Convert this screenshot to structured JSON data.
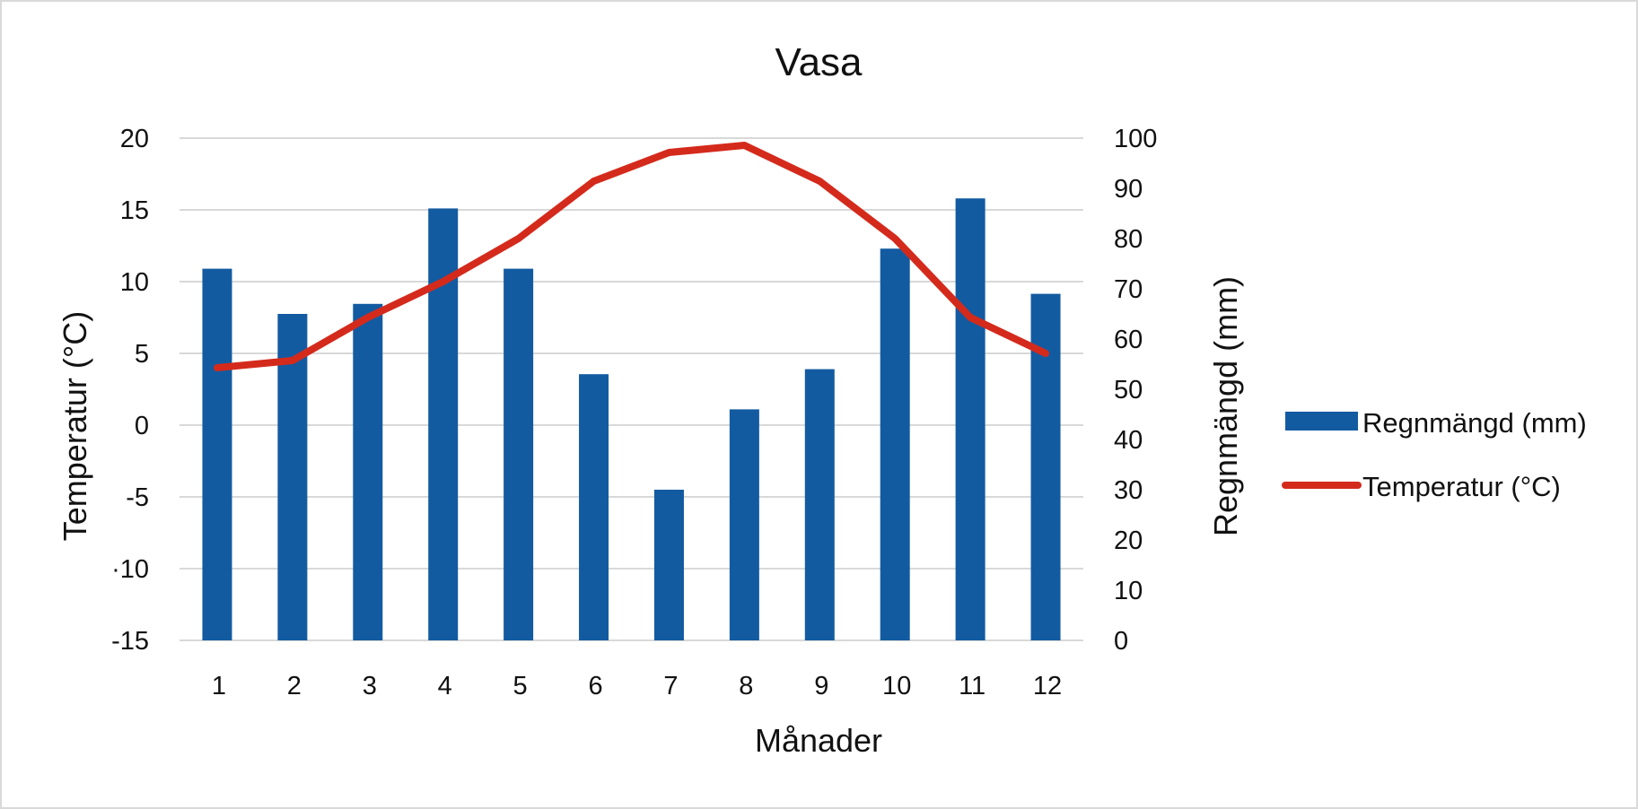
{
  "chart_data": {
    "type": "bar",
    "title": "Vasa",
    "xlabel": "Månader",
    "ylabel_left": "Temperatur (°C)",
    "ylabel_right": "Regnmängd (mm)",
    "categories": [
      "1",
      "2",
      "3",
      "4",
      "5",
      "6",
      "7",
      "8",
      "9",
      "10",
      "11",
      "12"
    ],
    "y_left": {
      "range": [
        -15,
        20
      ],
      "ticks": [
        20,
        15,
        10,
        5,
        0,
        -5,
        -10,
        -15
      ],
      "tick_labels": [
        "20",
        "15",
        "10",
        "5",
        "0",
        "-5",
        "·10",
        "-15"
      ]
    },
    "y_right": {
      "range": [
        0,
        100
      ],
      "ticks": [
        100,
        90,
        80,
        70,
        60,
        50,
        40,
        30,
        20,
        10,
        0
      ],
      "tick_labels": [
        "100",
        "90",
        "80",
        "70",
        "60",
        "50",
        "40",
        "30",
        "20",
        "10",
        "0"
      ]
    },
    "grid": true,
    "legend_position": "right",
    "series": [
      {
        "name": "Regnmängd (mm)",
        "type": "bar",
        "axis": "right",
        "color": "#135ba1",
        "values": [
          74,
          65,
          67,
          86,
          74,
          53,
          30,
          46,
          54,
          78,
          88,
          69
        ]
      },
      {
        "name": "Temperatur (°C)",
        "type": "line",
        "axis": "left",
        "color": "#d42a1c",
        "values": [
          4,
          4.5,
          7.5,
          10,
          13,
          17,
          19,
          19.5,
          17,
          13,
          7.5,
          5
        ]
      }
    ]
  }
}
